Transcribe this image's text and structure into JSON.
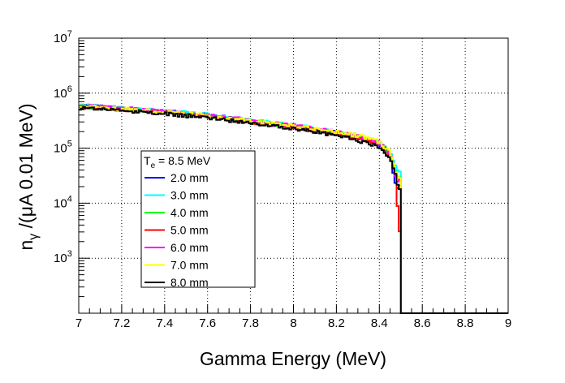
{
  "chart_data": {
    "type": "line",
    "xlabel": "Gamma Energy (MeV)",
    "ylabel": "n_γ /(μA 0.01 MeV)",
    "xlim": [
      7,
      9
    ],
    "ylim": [
      100,
      10000000
    ],
    "y_scale": "log",
    "grid": true,
    "x_ticks": [
      "7",
      "7.2",
      "7.4",
      "7.6",
      "7.8",
      "8",
      "8.2",
      "8.4",
      "8.6",
      "8.8",
      "9"
    ],
    "y_ticks": [
      {
        "base": "10",
        "exp": "3",
        "value": 1000
      },
      {
        "base": "10",
        "exp": "4",
        "value": 10000
      },
      {
        "base": "10",
        "exp": "5",
        "value": 100000
      },
      {
        "base": "10",
        "exp": "6",
        "value": 1000000
      },
      {
        "base": "10",
        "exp": "7",
        "value": 10000000
      }
    ],
    "legend": {
      "title_main": "T",
      "title_sub": "e",
      "title_rest": " = 8.5 MeV",
      "placement": "center-left"
    },
    "endpoint_mev": 8.5,
    "bin_width_mev": 0.01,
    "series": [
      {
        "name": "2.0 mm",
        "color": "#0000ff",
        "anchors": [
          [
            7.0,
            580000
          ],
          [
            7.2,
            520000
          ],
          [
            7.4,
            460000
          ],
          [
            7.6,
            400000
          ],
          [
            7.8,
            310000
          ],
          [
            8.0,
            250000
          ],
          [
            8.2,
            190000
          ],
          [
            8.3,
            160000
          ],
          [
            8.4,
            120000
          ],
          [
            8.45,
            75000
          ],
          [
            8.48,
            20000
          ]
        ]
      },
      {
        "name": "3.0 mm",
        "color": "#00ffff",
        "anchors": [
          [
            7.0,
            600000
          ],
          [
            7.2,
            540000
          ],
          [
            7.4,
            470000
          ],
          [
            7.6,
            410000
          ],
          [
            7.8,
            320000
          ],
          [
            8.0,
            260000
          ],
          [
            8.2,
            200000
          ],
          [
            8.3,
            170000
          ],
          [
            8.4,
            130000
          ],
          [
            8.45,
            85000
          ],
          [
            8.48,
            40000
          ]
        ]
      },
      {
        "name": "4.0 mm",
        "color": "#00ff00",
        "anchors": [
          [
            7.0,
            570000
          ],
          [
            7.2,
            520000
          ],
          [
            7.4,
            450000
          ],
          [
            7.6,
            390000
          ],
          [
            7.8,
            310000
          ],
          [
            8.0,
            250000
          ],
          [
            8.2,
            190000
          ],
          [
            8.3,
            160000
          ],
          [
            8.4,
            125000
          ],
          [
            8.45,
            80000
          ],
          [
            8.48,
            30000
          ]
        ]
      },
      {
        "name": "5.0 mm",
        "color": "#ff0000",
        "anchors": [
          [
            7.0,
            560000
          ],
          [
            7.2,
            510000
          ],
          [
            7.4,
            440000
          ],
          [
            7.6,
            380000
          ],
          [
            7.8,
            300000
          ],
          [
            8.0,
            240000
          ],
          [
            8.2,
            180000
          ],
          [
            8.3,
            150000
          ],
          [
            8.4,
            115000
          ],
          [
            8.45,
            70000
          ],
          [
            8.48,
            30000
          ],
          [
            8.49,
            3000
          ]
        ]
      },
      {
        "name": "6.0 mm",
        "color": "#ff00ff",
        "anchors": [
          [
            7.0,
            590000
          ],
          [
            7.2,
            530000
          ],
          [
            7.4,
            460000
          ],
          [
            7.6,
            400000
          ],
          [
            7.8,
            320000
          ],
          [
            8.0,
            255000
          ],
          [
            8.2,
            195000
          ],
          [
            8.3,
            165000
          ],
          [
            8.4,
            125000
          ],
          [
            8.45,
            80000
          ],
          [
            8.48,
            25000
          ]
        ]
      },
      {
        "name": "7.0 mm",
        "color": "#ffff00",
        "anchors": [
          [
            7.0,
            570000
          ],
          [
            7.2,
            520000
          ],
          [
            7.4,
            450000
          ],
          [
            7.6,
            390000
          ],
          [
            7.8,
            310000
          ],
          [
            8.0,
            250000
          ],
          [
            8.2,
            200000
          ],
          [
            8.3,
            170000
          ],
          [
            8.4,
            130000
          ],
          [
            8.45,
            85000
          ],
          [
            8.48,
            30000
          ]
        ]
      },
      {
        "name": "8.0 mm",
        "color": "#000000",
        "anchors": [
          [
            7.0,
            540000
          ],
          [
            7.2,
            490000
          ],
          [
            7.4,
            420000
          ],
          [
            7.6,
            360000
          ],
          [
            7.8,
            290000
          ],
          [
            8.0,
            230000
          ],
          [
            8.2,
            170000
          ],
          [
            8.3,
            140000
          ],
          [
            8.4,
            105000
          ],
          [
            8.45,
            65000
          ],
          [
            8.48,
            30000
          ],
          [
            8.49,
            18000
          ]
        ]
      }
    ]
  }
}
